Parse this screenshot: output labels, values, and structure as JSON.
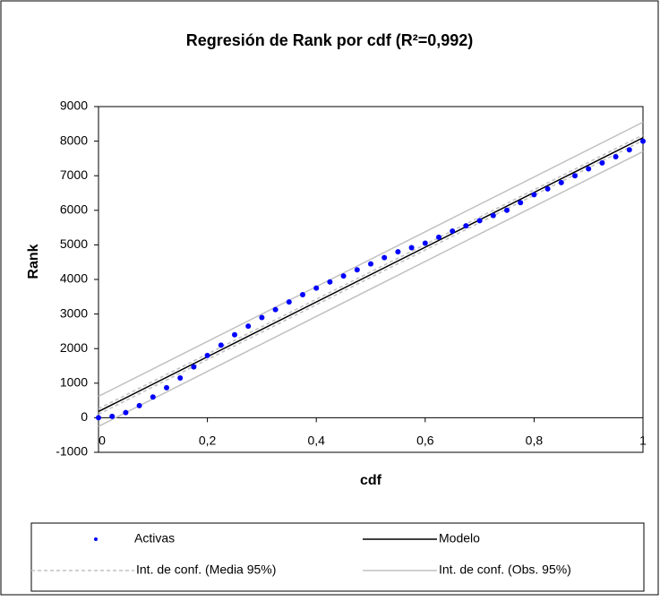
{
  "chart_data": {
    "type": "scatter",
    "title": "Regresión de Rank por cdf (R²=0,992)",
    "x_label": "cdf",
    "y_label": "Rank",
    "xlim": [
      0,
      1
    ],
    "ylim": [
      -1000,
      9000
    ],
    "xticks": [
      0,
      {
        "value": 0.2,
        "label": "0,2"
      },
      {
        "value": 0.4,
        "label": "0,4"
      },
      {
        "value": 0.6,
        "label": "0,6"
      },
      {
        "value": 0.8,
        "label": "0,8"
      },
      1
    ],
    "yticks": [
      -1000,
      0,
      1000,
      2000,
      3000,
      4000,
      5000,
      6000,
      7000,
      8000,
      9000
    ],
    "series": [
      {
        "name": "Activas",
        "color": "#0000ff",
        "kind": "points",
        "x": [
          0,
          0.025,
          0.05,
          0.075,
          0.1,
          0.125,
          0.15,
          0.175,
          0.2,
          0.225,
          0.25,
          0.275,
          0.3,
          0.325,
          0.35,
          0.375,
          0.4,
          0.425,
          0.45,
          0.475,
          0.5,
          0.525,
          0.55,
          0.575,
          0.6,
          0.625,
          0.65,
          0.675,
          0.7,
          0.725,
          0.75,
          0.775,
          0.8,
          0.825,
          0.85,
          0.875,
          0.9,
          0.925,
          0.95,
          0.975,
          1
        ],
        "values": [
          0,
          40,
          150,
          350,
          600,
          870,
          1150,
          1470,
          1800,
          2100,
          2400,
          2650,
          2900,
          3130,
          3350,
          3560,
          3750,
          3930,
          4100,
          4280,
          4450,
          4630,
          4800,
          4920,
          5050,
          5220,
          5400,
          5550,
          5700,
          5850,
          6000,
          6220,
          6450,
          6620,
          6800,
          7000,
          7200,
          7370,
          7550,
          7750,
          8000
        ]
      },
      {
        "name": "Modelo",
        "color": "#000000",
        "kind": "line",
        "x": [
          0,
          1
        ],
        "values": [
          180,
          8100
        ]
      },
      {
        "name": "Int. de conf. (Media 95%)",
        "color": "#c0c0c0",
        "kind": "band",
        "dashed": true,
        "x": [
          0,
          1
        ],
        "upper": [
          260,
          8180
        ],
        "lower": [
          100,
          8020
        ]
      },
      {
        "name": "Int. de conf. (Obs. 95%)",
        "color": "#c0c0c0",
        "kind": "band",
        "dashed": false,
        "x": [
          0,
          1
        ],
        "upper": [
          620,
          8550
        ],
        "lower": [
          -250,
          7700
        ]
      }
    ]
  }
}
